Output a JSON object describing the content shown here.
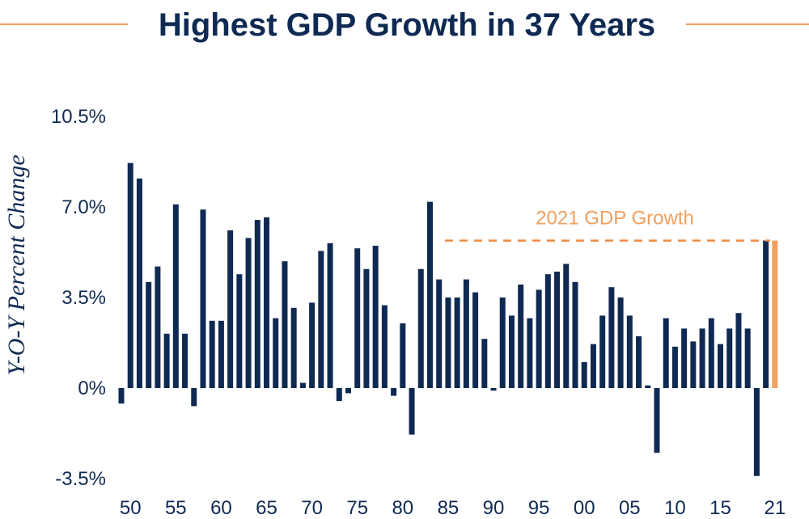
{
  "colors": {
    "navy": "#0f2a52",
    "orange": "#f0a060",
    "orange_line": "#ee8a3f"
  },
  "chart_data": {
    "type": "bar",
    "title": "Highest GDP Growth in 37 Years",
    "ylabel": "Y-O-Y Percent Change",
    "xlabel": "",
    "ylim": [
      -3.5,
      10.5
    ],
    "yticks": [
      10.5,
      7.0,
      3.5,
      0,
      -3.5
    ],
    "ytick_labels": [
      "10.5%",
      "7.0%",
      "3.5%",
      "0%",
      "-3.5%"
    ],
    "xtick_labels": [
      "50",
      "55",
      "60",
      "65",
      "70",
      "75",
      "80",
      "85",
      "90",
      "95",
      "00",
      "05",
      "10",
      "15",
      "21"
    ],
    "xtick_years": [
      1950,
      1955,
      1960,
      1965,
      1970,
      1975,
      1980,
      1985,
      1990,
      1995,
      2000,
      2005,
      2010,
      2015,
      2021
    ],
    "years": [
      1949,
      1950,
      1951,
      1952,
      1953,
      1954,
      1955,
      1956,
      1957,
      1958,
      1959,
      1960,
      1961,
      1962,
      1963,
      1964,
      1965,
      1966,
      1967,
      1968,
      1969,
      1970,
      1971,
      1972,
      1973,
      1974,
      1975,
      1976,
      1977,
      1978,
      1979,
      1980,
      1981,
      1982,
      1983,
      1984,
      1985,
      1986,
      1987,
      1988,
      1989,
      1990,
      1991,
      1992,
      1993,
      1994,
      1995,
      1996,
      1997,
      1998,
      1999,
      2000,
      2001,
      2002,
      2003,
      2004,
      2005,
      2006,
      2007,
      2008,
      2009,
      2010,
      2011,
      2012,
      2013,
      2014,
      2015,
      2016,
      2017,
      2018,
      2019,
      2020,
      2021
    ],
    "values": [
      -0.6,
      8.7,
      8.1,
      4.1,
      4.7,
      2.1,
      7.1,
      2.1,
      -0.7,
      6.9,
      2.6,
      2.6,
      6.1,
      4.4,
      5.8,
      6.5,
      6.6,
      2.7,
      4.9,
      3.1,
      0.2,
      3.3,
      5.3,
      5.6,
      -0.5,
      -0.2,
      5.4,
      4.6,
      5.5,
      3.2,
      -0.3,
      2.5,
      -1.8,
      4.6,
      7.2,
      4.2,
      3.5,
      3.5,
      4.2,
      3.7,
      1.9,
      -0.1,
      3.5,
      2.8,
      4.0,
      2.7,
      3.8,
      4.4,
      4.5,
      4.8,
      4.1,
      1.0,
      1.7,
      2.8,
      3.9,
      3.5,
      2.8,
      2.0,
      0.1,
      -2.5,
      2.7,
      1.6,
      2.3,
      1.8,
      2.3,
      2.7,
      1.7,
      2.3,
      2.9,
      2.3,
      -3.4,
      5.7,
      5.7
    ],
    "highlight_year": 2021,
    "annotation": "2021 GDP Growth",
    "annotation_value": 5.7,
    "series_colors": {
      "default": "#0f2a52",
      "highlight": "#f0a060"
    }
  }
}
